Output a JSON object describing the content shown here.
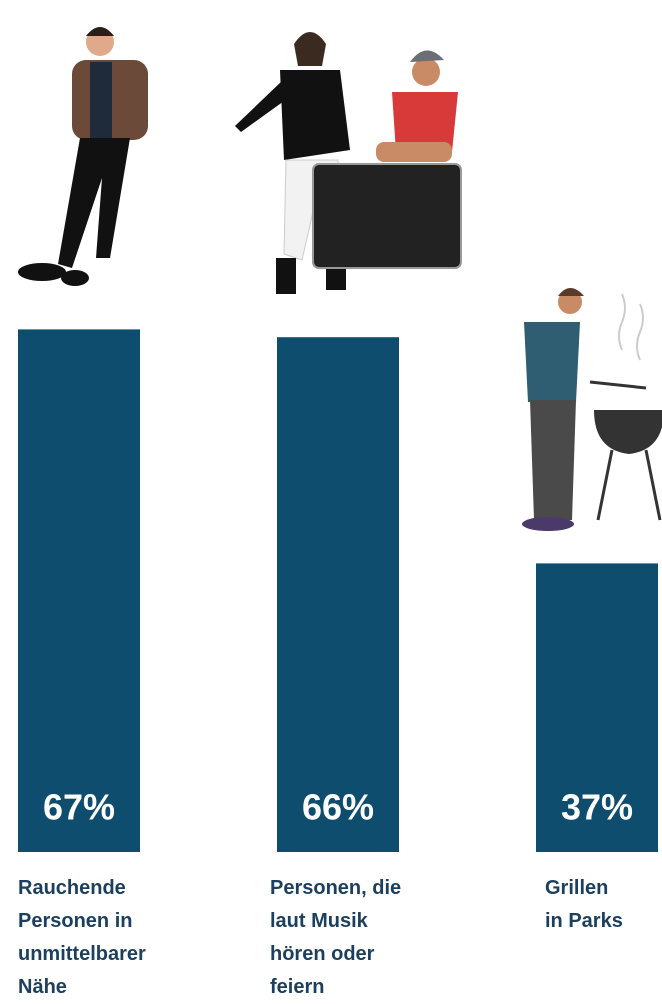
{
  "chart_data": {
    "type": "bar",
    "categories": [
      "Rauchende\nPersonen in\nunmittelbarer\nNähe",
      "Personen, die\nlaut Musik\nhören oder\nfeiern",
      "Grillen\nin Parks"
    ],
    "values": [
      67,
      66,
      37
    ],
    "value_labels": [
      "67%",
      "66%",
      "37%"
    ],
    "color": "#0e4d6e"
  }
}
